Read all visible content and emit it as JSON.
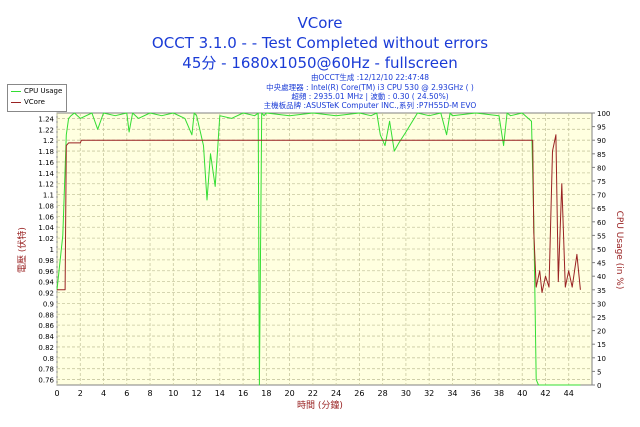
{
  "header": {
    "title": "VCore",
    "line2": "OCCT 3.1.0 -  - Test Completed without errors",
    "line3": "45分 - 1680x1050@60Hz - fullscreen"
  },
  "info_lines": [
    "由OCCT生成 :12/12/10 22:47:48",
    "中央處理器 : Intel(R) Core(TM) i3 CPU 530 @ 2.93GHz (  )",
    "超頻 : 2935.01 MHz | 波動 : 0.30 ( 24.50%)",
    "主機板品牌 :ASUSTeK Computer INC.,系列 :P7H55D-M EVO"
  ],
  "colors": {
    "cpu_usage": "#33dd33",
    "vcore": "#992222",
    "plot_bg": "#ffffe0",
    "grid": "#c8c8a0",
    "text_blue": "#1a3bd6",
    "axis_red": "#992222"
  },
  "chart_data": {
    "type": "line",
    "xlabel": "時間 (分鐘)",
    "ylabel_left": "電壓 (伏特)",
    "ylabel_right": "CPU Usage (in %)",
    "xlim": [
      0,
      46
    ],
    "ylim_left": [
      0.75,
      1.25
    ],
    "ylim_right": [
      0,
      100
    ],
    "x_ticks": [
      0,
      2,
      4,
      6,
      8,
      10,
      12,
      14,
      16,
      18,
      20,
      22,
      24,
      26,
      28,
      30,
      32,
      34,
      36,
      38,
      40,
      42,
      44
    ],
    "y_ticks_left": [
      0.76,
      0.78,
      0.8,
      0.82,
      0.84,
      0.86,
      0.88,
      0.9,
      0.92,
      0.94,
      0.96,
      0.98,
      1.0,
      1.02,
      1.04,
      1.06,
      1.08,
      1.1,
      1.12,
      1.14,
      1.16,
      1.18,
      1.2,
      1.22,
      1.24
    ],
    "y_ticks_right": [
      0,
      5,
      10,
      15,
      20,
      25,
      30,
      35,
      40,
      45,
      50,
      55,
      60,
      65,
      70,
      75,
      80,
      85,
      90,
      95,
      100
    ],
    "grid": true,
    "legend": "top-left",
    "series": [
      {
        "name": "CPU Usage",
        "axis": "right",
        "x": [
          0,
          0.5,
          0.8,
          1.0,
          1.2,
          1.5,
          2.0,
          3.0,
          3.5,
          4.0,
          5.0,
          6.0,
          6.2,
          6.5,
          7.0,
          8.0,
          9.0,
          10.0,
          11.0,
          11.6,
          11.8,
          12.0,
          12.6,
          12.9,
          13.2,
          13.6,
          14.0,
          15.0,
          16.0,
          17.0,
          17.3,
          17.4,
          17.6,
          17.8,
          18.0,
          20.0,
          22.0,
          24.0,
          26.0,
          27.0,
          27.5,
          27.8,
          28.2,
          28.6,
          29.0,
          29.4,
          30.0,
          31.0,
          32.0,
          33.0,
          33.5,
          33.8,
          34.0,
          36.0,
          38.0,
          38.4,
          38.7,
          39.0,
          40.0,
          40.8,
          41.0,
          41.2,
          41.4,
          41.6,
          42.0,
          44.0,
          45.0
        ],
        "y": [
          35,
          55,
          92,
          98,
          99,
          100,
          98,
          100,
          94,
          100,
          99,
          100,
          93,
          100,
          98,
          100,
          99,
          100,
          98,
          92,
          100,
          99,
          88,
          68,
          85,
          73,
          99,
          98,
          100,
          99,
          100,
          0,
          100,
          99,
          100,
          99,
          100,
          99,
          100,
          99,
          100,
          92,
          88,
          97,
          86,
          89,
          93,
          100,
          99,
          100,
          92,
          100,
          99,
          100,
          99,
          88,
          100,
          99,
          100,
          97,
          60,
          2,
          0,
          0,
          0,
          0,
          0
        ]
      },
      {
        "name": "VCore",
        "axis": "left",
        "x": [
          0,
          0.7,
          0.8,
          1.0,
          2.0,
          2.1,
          2.4,
          3.0,
          10.0,
          20.0,
          30.0,
          40.0,
          40.9,
          41.0,
          41.2,
          41.5,
          41.7,
          42.0,
          42.3,
          42.6,
          42.9,
          43.1,
          43.4,
          43.7,
          44.0,
          44.3,
          44.7,
          45.0
        ],
        "y": [
          0.925,
          0.925,
          1.19,
          1.195,
          1.195,
          1.2,
          1.2,
          1.2,
          1.2,
          1.2,
          1.2,
          1.2,
          1.2,
          1.03,
          0.93,
          0.96,
          0.92,
          0.95,
          0.93,
          1.18,
          1.21,
          0.94,
          1.12,
          0.93,
          0.96,
          0.93,
          0.99,
          0.925
        ]
      }
    ]
  }
}
